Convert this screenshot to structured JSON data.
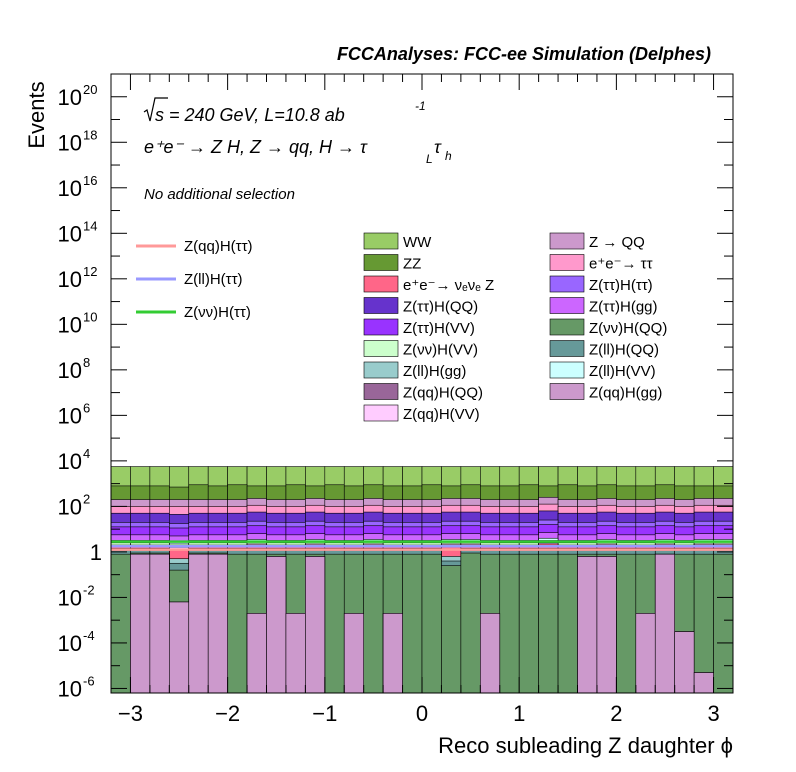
{
  "chart_data": {
    "type": "stacked-histogram",
    "title": "FCCAnalyses: FCC-ee Simulation (Delphes)",
    "xlabel": "Reco subleading Z daughter ϕ",
    "ylabel": "Events",
    "xlim": [
      -3.2,
      3.2
    ],
    "ylim_log10": [
      -6.2,
      21
    ],
    "yscale": "log",
    "x_ticks": [
      -3,
      -2,
      -1,
      0,
      1,
      2,
      3
    ],
    "x_tick_labels": [
      "−3",
      "−2",
      "−1",
      "0",
      "1",
      "2",
      "3"
    ],
    "y_tick_labels": [
      {
        "exp": -6,
        "label": "10",
        "sup": "-6"
      },
      {
        "exp": -4,
        "label": "10",
        "sup": "-4"
      },
      {
        "exp": -2,
        "label": "10",
        "sup": "-2"
      },
      {
        "exp": 0,
        "label": "1",
        "sup": ""
      },
      {
        "exp": 2,
        "label": "10",
        "sup": "2"
      },
      {
        "exp": 4,
        "label": "10",
        "sup": "4"
      },
      {
        "exp": 6,
        "label": "10",
        "sup": "6"
      },
      {
        "exp": 8,
        "label": "10",
        "sup": "8"
      },
      {
        "exp": 10,
        "label": "10",
        "sup": "10"
      },
      {
        "exp": 12,
        "label": "10",
        "sup": "12"
      },
      {
        "exp": 14,
        "label": "10",
        "sup": "14"
      },
      {
        "exp": 16,
        "label": "10",
        "sup": "16"
      },
      {
        "exp": 18,
        "label": "10",
        "sup": "18"
      },
      {
        "exp": 20,
        "label": "10",
        "sup": "20"
      }
    ],
    "annotations": {
      "energy_sqrt": "s",
      "energy_rest": " = 240 GeV, L=10.8 ab",
      "lumi_exp": "-1",
      "process": "e⁺e⁻ → Z H, Z  → qq, H  →  τ",
      "tau_sub_L": "L",
      "tau2": "τ",
      "tau_sub_h": "h",
      "selection": "No additional selection"
    },
    "n_bins": 32,
    "stack": [
      {
        "name": "Z(qq)H(gg)",
        "color": "#cc99cc",
        "level": [
          -6.2,
          -0.1,
          -0.1,
          -2.2,
          -0.1,
          -0.1,
          -6.2,
          -2.7,
          -0.2,
          -2.7,
          -0.2,
          -6.2,
          -2.7,
          -6.2,
          -2.7,
          -6.2,
          -6.2,
          -6.2,
          -6.2,
          -2.7,
          -6.2,
          -6.2,
          -6.2,
          -6.2,
          -0.2,
          -0.2,
          -6.2,
          -2.7,
          -0.1,
          -3.5,
          -5.3,
          -6.2
        ]
      },
      {
        "name": "Z(qq)H(QQ)",
        "color": "#996699",
        "level": [
          -6.2,
          -0.1,
          -0.1,
          -2.2,
          -0.1,
          -0.1,
          -6.2,
          -2.7,
          -0.2,
          -2.7,
          -0.2,
          -6.2,
          -2.7,
          -6.2,
          -2.7,
          -6.2,
          -6.2,
          -6.2,
          -6.2,
          -2.7,
          -6.2,
          -6.2,
          -6.2,
          -6.2,
          -0.2,
          -0.2,
          -6.2,
          -2.7,
          -0.1,
          -3.5,
          -5.3,
          -6.2
        ]
      },
      {
        "name": "Z(νν)H(QQ)",
        "color": "#669966",
        "level": [
          -0.1,
          -0.05,
          -0.05,
          -0.8,
          -0.05,
          -0.05,
          -0.1,
          -0.1,
          -0.1,
          -0.1,
          -0.1,
          -0.1,
          -0.1,
          -0.1,
          -0.1,
          -0.1,
          -0.1,
          -0.6,
          -0.05,
          -0.1,
          -0.1,
          -0.1,
          -0.1,
          -0.1,
          -0.1,
          -0.1,
          -0.1,
          -0.1,
          -0.1,
          -0.1,
          -0.1,
          -0.1
        ]
      },
      {
        "name": "Z(ll)H(QQ)",
        "color": "#669999",
        "level": [
          0.1,
          0.1,
          0.1,
          -0.5,
          0.1,
          0.1,
          0.1,
          0.1,
          0.1,
          0.1,
          0.1,
          0.1,
          0.1,
          0.1,
          0.1,
          0.1,
          0.1,
          -0.4,
          0.1,
          0.1,
          0.1,
          0.1,
          0.1,
          0.1,
          0.1,
          0.1,
          0.1,
          0.1,
          0.1,
          0.1,
          0.1,
          0.1
        ]
      },
      {
        "name": "Z(ll)H(gg)",
        "color": "#99cccc",
        "level": [
          0.15,
          0.15,
          0.15,
          -0.3,
          0.15,
          0.15,
          0.15,
          0.15,
          0.15,
          0.15,
          0.15,
          0.15,
          0.15,
          0.15,
          0.15,
          0.15,
          0.15,
          -0.2,
          0.15,
          0.15,
          0.15,
          0.15,
          0.15,
          0.15,
          0.15,
          0.15,
          0.15,
          0.15,
          0.15,
          0.15,
          0.15,
          0.15
        ]
      },
      {
        "name": "e⁺e⁻→ νₑνₑ Z",
        "color": "#ff6688",
        "level": [
          0.25,
          0.25,
          0.25,
          0.1,
          0.25,
          0.25,
          0.25,
          0.3,
          0.25,
          0.25,
          0.3,
          0.25,
          0.25,
          0.3,
          0.25,
          0.25,
          0.25,
          0.3,
          0.3,
          0.25,
          0.25,
          0.25,
          0.35,
          0.25,
          0.25,
          0.3,
          0.25,
          0.25,
          0.3,
          0.25,
          0.3,
          0.3
        ]
      },
      {
        "name": "Z(qq)H(VV)",
        "color": "#ffccff",
        "level": [
          0.3,
          0.3,
          0.3,
          0.2,
          0.3,
          0.3,
          0.3,
          0.35,
          0.3,
          0.3,
          0.35,
          0.3,
          0.3,
          0.35,
          0.3,
          0.3,
          0.3,
          0.35,
          0.35,
          0.3,
          0.3,
          0.3,
          0.4,
          0.3,
          0.3,
          0.35,
          0.3,
          0.3,
          0.35,
          0.3,
          0.35,
          0.35
        ]
      },
      {
        "name": "Z(νν)H(VV)",
        "color": "#ccffcc",
        "level": [
          0.4,
          0.4,
          0.4,
          0.35,
          0.4,
          0.4,
          0.4,
          0.45,
          0.4,
          0.4,
          0.45,
          0.4,
          0.4,
          0.45,
          0.4,
          0.4,
          0.4,
          0.45,
          0.45,
          0.4,
          0.4,
          0.4,
          0.5,
          0.4,
          0.4,
          0.45,
          0.4,
          0.4,
          0.45,
          0.4,
          0.45,
          0.45
        ]
      },
      {
        "name": "Z(ll)H(VV)",
        "color": "#ccffff",
        "level": [
          0.5,
          0.5,
          0.5,
          0.45,
          0.5,
          0.5,
          0.5,
          0.55,
          0.5,
          0.5,
          0.55,
          0.5,
          0.5,
          0.55,
          0.5,
          0.5,
          0.5,
          0.55,
          0.55,
          0.5,
          0.5,
          0.5,
          0.6,
          0.5,
          0.5,
          0.55,
          0.5,
          0.5,
          0.55,
          0.5,
          0.55,
          0.55
        ]
      },
      {
        "name": "Z(ττ)H(gg)",
        "color": "#cc66ff",
        "level": [
          0.75,
          0.75,
          0.75,
          0.7,
          0.75,
          0.75,
          0.75,
          0.8,
          0.75,
          0.75,
          0.8,
          0.75,
          0.75,
          0.8,
          0.75,
          0.75,
          0.75,
          0.8,
          0.8,
          0.75,
          0.75,
          0.75,
          0.85,
          0.75,
          0.75,
          0.8,
          0.75,
          0.75,
          0.8,
          0.75,
          0.8,
          0.8
        ]
      },
      {
        "name": "Z(ττ)H(VV)",
        "color": "#9933ff",
        "level": [
          1.1,
          1.1,
          1.1,
          1.05,
          1.1,
          1.1,
          1.1,
          1.15,
          1.1,
          1.1,
          1.15,
          1.1,
          1.1,
          1.15,
          1.1,
          1.1,
          1.1,
          1.15,
          1.15,
          1.1,
          1.1,
          1.1,
          1.2,
          1.1,
          1.1,
          1.15,
          1.1,
          1.1,
          1.15,
          1.1,
          1.15,
          1.15
        ]
      },
      {
        "name": "Z(ττ)H(ττ)",
        "color": "#9966ff",
        "level": [
          1.3,
          1.3,
          1.3,
          1.25,
          1.3,
          1.3,
          1.3,
          1.35,
          1.3,
          1.3,
          1.35,
          1.3,
          1.3,
          1.35,
          1.3,
          1.3,
          1.3,
          1.35,
          1.35,
          1.3,
          1.3,
          1.3,
          1.4,
          1.3,
          1.3,
          1.35,
          1.3,
          1.3,
          1.35,
          1.3,
          1.35,
          1.35
        ]
      },
      {
        "name": "Z(ττ)H(QQ)",
        "color": "#6633cc",
        "level": [
          1.7,
          1.7,
          1.7,
          1.65,
          1.7,
          1.7,
          1.7,
          1.75,
          1.7,
          1.7,
          1.75,
          1.7,
          1.7,
          1.75,
          1.7,
          1.7,
          1.7,
          1.75,
          1.75,
          1.7,
          1.7,
          1.7,
          1.8,
          1.7,
          1.7,
          1.75,
          1.7,
          1.7,
          1.75,
          1.7,
          1.75,
          1.75
        ]
      },
      {
        "name": "e⁺e⁻→ ττ",
        "color": "#ff99cc",
        "level": [
          2.0,
          2.0,
          2.0,
          2.0,
          2.0,
          2.0,
          2.0,
          2.05,
          2.0,
          2.0,
          2.05,
          2.0,
          2.0,
          2.05,
          2.0,
          2.0,
          2.0,
          2.05,
          2.05,
          2.0,
          2.0,
          2.0,
          2.1,
          2.0,
          2.0,
          2.05,
          2.0,
          2.0,
          2.05,
          2.0,
          2.05,
          2.05
        ]
      },
      {
        "name": "Z → QQ",
        "color": "#cc99cc",
        "level": [
          2.3,
          2.3,
          2.3,
          2.3,
          2.3,
          2.3,
          2.3,
          2.35,
          2.3,
          2.3,
          2.35,
          2.3,
          2.3,
          2.35,
          2.3,
          2.3,
          2.3,
          2.35,
          2.35,
          2.3,
          2.3,
          2.3,
          2.4,
          2.3,
          2.3,
          2.35,
          2.3,
          2.3,
          2.35,
          2.3,
          2.35,
          2.35
        ]
      },
      {
        "name": "ZZ",
        "color": "#669933",
        "level": [
          2.9,
          2.9,
          2.9,
          2.85,
          2.95,
          2.9,
          2.95,
          2.9,
          2.9,
          2.95,
          2.9,
          2.95,
          2.9,
          2.95,
          2.9,
          2.9,
          2.95,
          2.9,
          2.95,
          2.9,
          2.9,
          2.95,
          2.9,
          2.95,
          2.9,
          2.95,
          2.9,
          2.9,
          2.95,
          2.9,
          2.9,
          2.9
        ]
      },
      {
        "name": "WW",
        "color": "#99cc66",
        "level": [
          3.75,
          3.75,
          3.75,
          3.75,
          3.75,
          3.75,
          3.75,
          3.75,
          3.75,
          3.75,
          3.75,
          3.75,
          3.75,
          3.75,
          3.75,
          3.75,
          3.75,
          3.75,
          3.75,
          3.75,
          3.75,
          3.75,
          3.75,
          3.75,
          3.75,
          3.75,
          3.75,
          3.75,
          3.75,
          3.75,
          3.75,
          3.75
        ]
      }
    ],
    "signal_lines": [
      {
        "name": "Z(qq)H(ττ)",
        "color": "#ff9999",
        "log10_value": 0.1
      },
      {
        "name": "Z(ll)H(ττ)",
        "color": "#9999ff",
        "log10_value": 0.25
      },
      {
        "name": "Z(νν)H(ττ)",
        "color": "#33cc33",
        "log10_value": 0.45
      }
    ],
    "legend_columns": [
      [
        "WW",
        "ZZ",
        "e⁺e⁻→ νₑνₑ Z",
        "Z(ττ)H(QQ)",
        "Z(ττ)H(VV)",
        "Z(νν)H(VV)",
        "Z(ll)H(gg)",
        "Z(qq)H(QQ)",
        "Z(qq)H(VV)"
      ],
      [
        "Z → QQ",
        "e⁺e⁻→ ττ",
        "Z(ττ)H(ττ)",
        "Z(ττ)H(gg)",
        "Z(νν)H(QQ)",
        "Z(ll)H(QQ)",
        "Z(ll)H(VV)",
        "Z(qq)H(gg)"
      ]
    ]
  }
}
